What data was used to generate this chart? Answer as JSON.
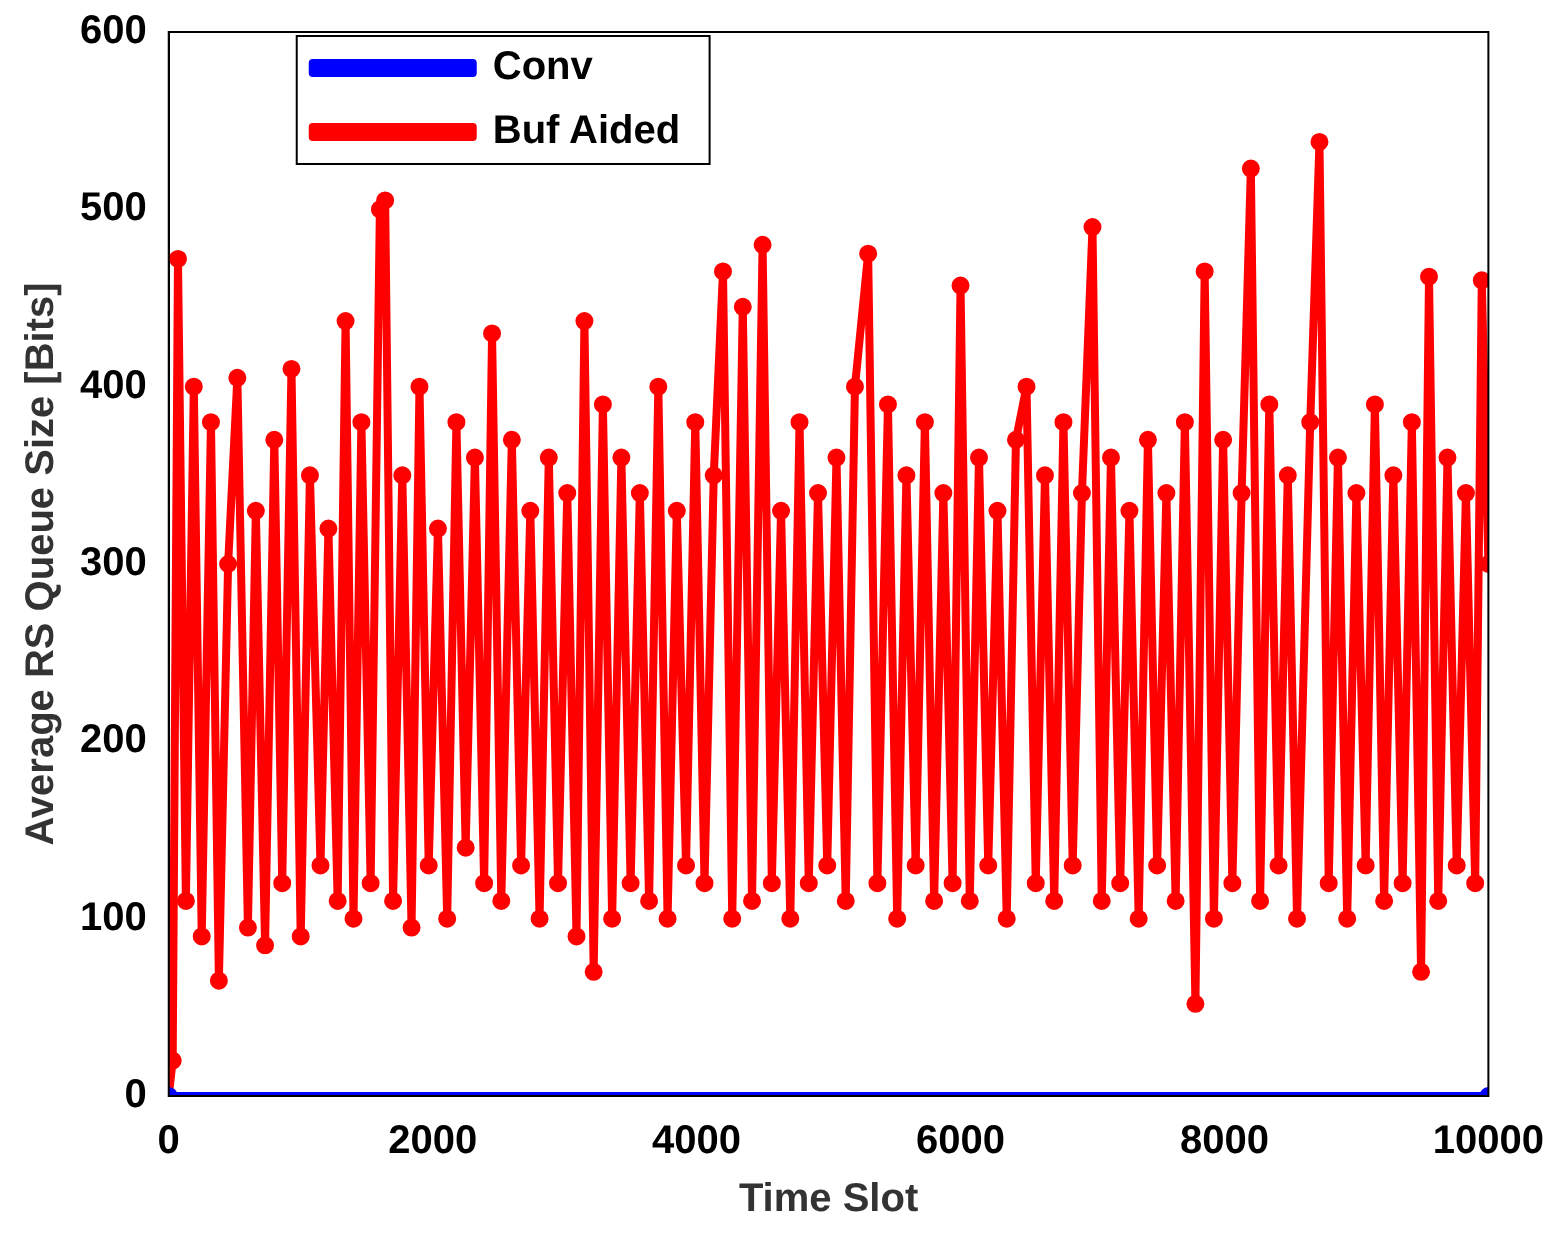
{
  "chart_data": {
    "type": "line",
    "xlabel": "Time Slot",
    "ylabel": "Average RS Queue Size [Bits]",
    "xlim": [
      0,
      10000
    ],
    "ylim": [
      0,
      600
    ],
    "xticks": [
      0,
      2000,
      4000,
      6000,
      8000,
      10000
    ],
    "yticks": [
      0,
      100,
      200,
      300,
      400,
      500,
      600
    ],
    "grid": false,
    "legend": "top left",
    "marker": "circle",
    "line_style": "solid",
    "series": [
      {
        "name": "Conv",
        "color": "#0000ff",
        "x": [
          0,
          10000
        ],
        "values": [
          0,
          0
        ]
      },
      {
        "name": "Buf Aided",
        "color": "#ff0000",
        "x": [
          0,
          30,
          70,
          130,
          190,
          250,
          320,
          380,
          450,
          520,
          600,
          660,
          730,
          800,
          860,
          930,
          1000,
          1070,
          1150,
          1210,
          1280,
          1340,
          1400,
          1460,
          1530,
          1600,
          1640,
          1700,
          1770,
          1840,
          1900,
          1970,
          2040,
          2110,
          2180,
          2250,
          2320,
          2390,
          2450,
          2520,
          2600,
          2670,
          2740,
          2810,
          2880,
          2950,
          3020,
          3090,
          3150,
          3220,
          3290,
          3360,
          3430,
          3500,
          3570,
          3640,
          3710,
          3780,
          3850,
          3920,
          3990,
          4060,
          4130,
          4200,
          4270,
          4350,
          4420,
          4500,
          4570,
          4640,
          4710,
          4780,
          4850,
          4920,
          4990,
          5060,
          5130,
          5200,
          5300,
          5370,
          5450,
          5520,
          5590,
          5660,
          5730,
          5800,
          5870,
          5940,
          6000,
          6070,
          6140,
          6210,
          6280,
          6350,
          6420,
          6500,
          6570,
          6640,
          6710,
          6780,
          6850,
          6920,
          7000,
          7070,
          7140,
          7210,
          7280,
          7350,
          7420,
          7490,
          7560,
          7630,
          7700,
          7780,
          7850,
          7920,
          7990,
          8060,
          8130,
          8200,
          8270,
          8340,
          8410,
          8480,
          8550,
          8650,
          8720,
          8790,
          8860,
          8930,
          9000,
          9070,
          9140,
          9210,
          9280,
          9350,
          9420,
          9490,
          9550,
          9620,
          9690,
          9760,
          9830,
          9900,
          9950,
          10000
        ],
        "values": [
          0,
          20,
          472,
          110,
          400,
          90,
          380,
          65,
          300,
          405,
          95,
          330,
          85,
          370,
          120,
          410,
          90,
          350,
          130,
          320,
          110,
          437,
          100,
          380,
          120,
          500,
          505,
          110,
          350,
          95,
          400,
          130,
          320,
          100,
          380,
          140,
          360,
          120,
          430,
          110,
          370,
          130,
          330,
          100,
          360,
          120,
          340,
          90,
          437,
          70,
          390,
          100,
          360,
          120,
          340,
          110,
          400,
          100,
          330,
          130,
          380,
          120,
          350,
          465,
          100,
          445,
          110,
          480,
          120,
          330,
          100,
          380,
          120,
          340,
          130,
          360,
          110,
          400,
          475,
          120,
          390,
          100,
          350,
          130,
          380,
          110,
          340,
          120,
          457,
          110,
          360,
          130,
          330,
          100,
          370,
          400,
          120,
          350,
          110,
          380,
          130,
          340,
          490,
          110,
          360,
          120,
          330,
          100,
          370,
          130,
          340,
          110,
          380,
          52,
          465,
          100,
          370,
          120,
          340,
          523,
          110,
          390,
          130,
          350,
          100,
          380,
          538,
          120,
          360,
          100,
          340,
          130,
          390,
          110,
          350,
          120,
          380,
          70,
          462,
          110,
          360,
          130,
          340,
          120,
          460,
          300
        ]
      }
    ]
  }
}
